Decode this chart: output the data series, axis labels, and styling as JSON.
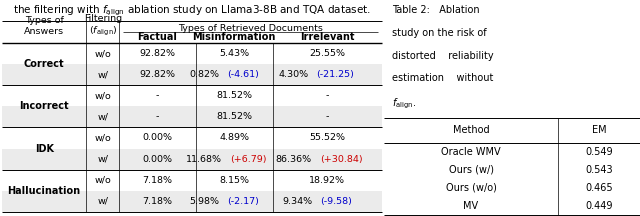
{
  "caption_text": "the filtering with $f_{\\mathrm{align}}$ ablation study on Llama3-8B and TQA dataset.",
  "table1_rows": [
    [
      "Correct",
      "w/o",
      "92.82%",
      "5.43%",
      "25.55%"
    ],
    [
      "",
      "w/",
      "92.82%",
      "0.82%(-4.61)",
      "4.30%(-21.25)"
    ],
    [
      "Incorrect",
      "w/o",
      "-",
      "81.52%",
      "-"
    ],
    [
      "",
      "w/",
      "-",
      "81.52%",
      "-"
    ],
    [
      "IDK",
      "w/o",
      "0.00%",
      "4.89%",
      "55.52%"
    ],
    [
      "",
      "w/",
      "0.00%",
      "11.68%(+6.79)",
      "86.36%(+30.84)"
    ],
    [
      "Hallucination",
      "w/o",
      "7.18%",
      "8.15%",
      "18.92%"
    ],
    [
      "",
      "w/",
      "7.18%",
      "5.98%(-2.17)",
      "9.34%(-9.58)"
    ]
  ],
  "delta_colors": {
    "(-4.61)": "#0000cc",
    "(-21.25)": "#0000cc",
    "(+6.79)": "#cc0000",
    "(+30.84)": "#cc0000",
    "(-2.17)": "#0000cc",
    "(-9.58)": "#0000cc"
  },
  "table2_rows": [
    [
      "Oracle WMV",
      "0.549"
    ],
    [
      "Ours (w/)",
      "0.543"
    ],
    [
      "Ours (w/o)",
      "0.465"
    ],
    [
      "MV",
      "0.449"
    ]
  ],
  "bg_gray": "#ebebeb",
  "bg_white": "#ffffff"
}
